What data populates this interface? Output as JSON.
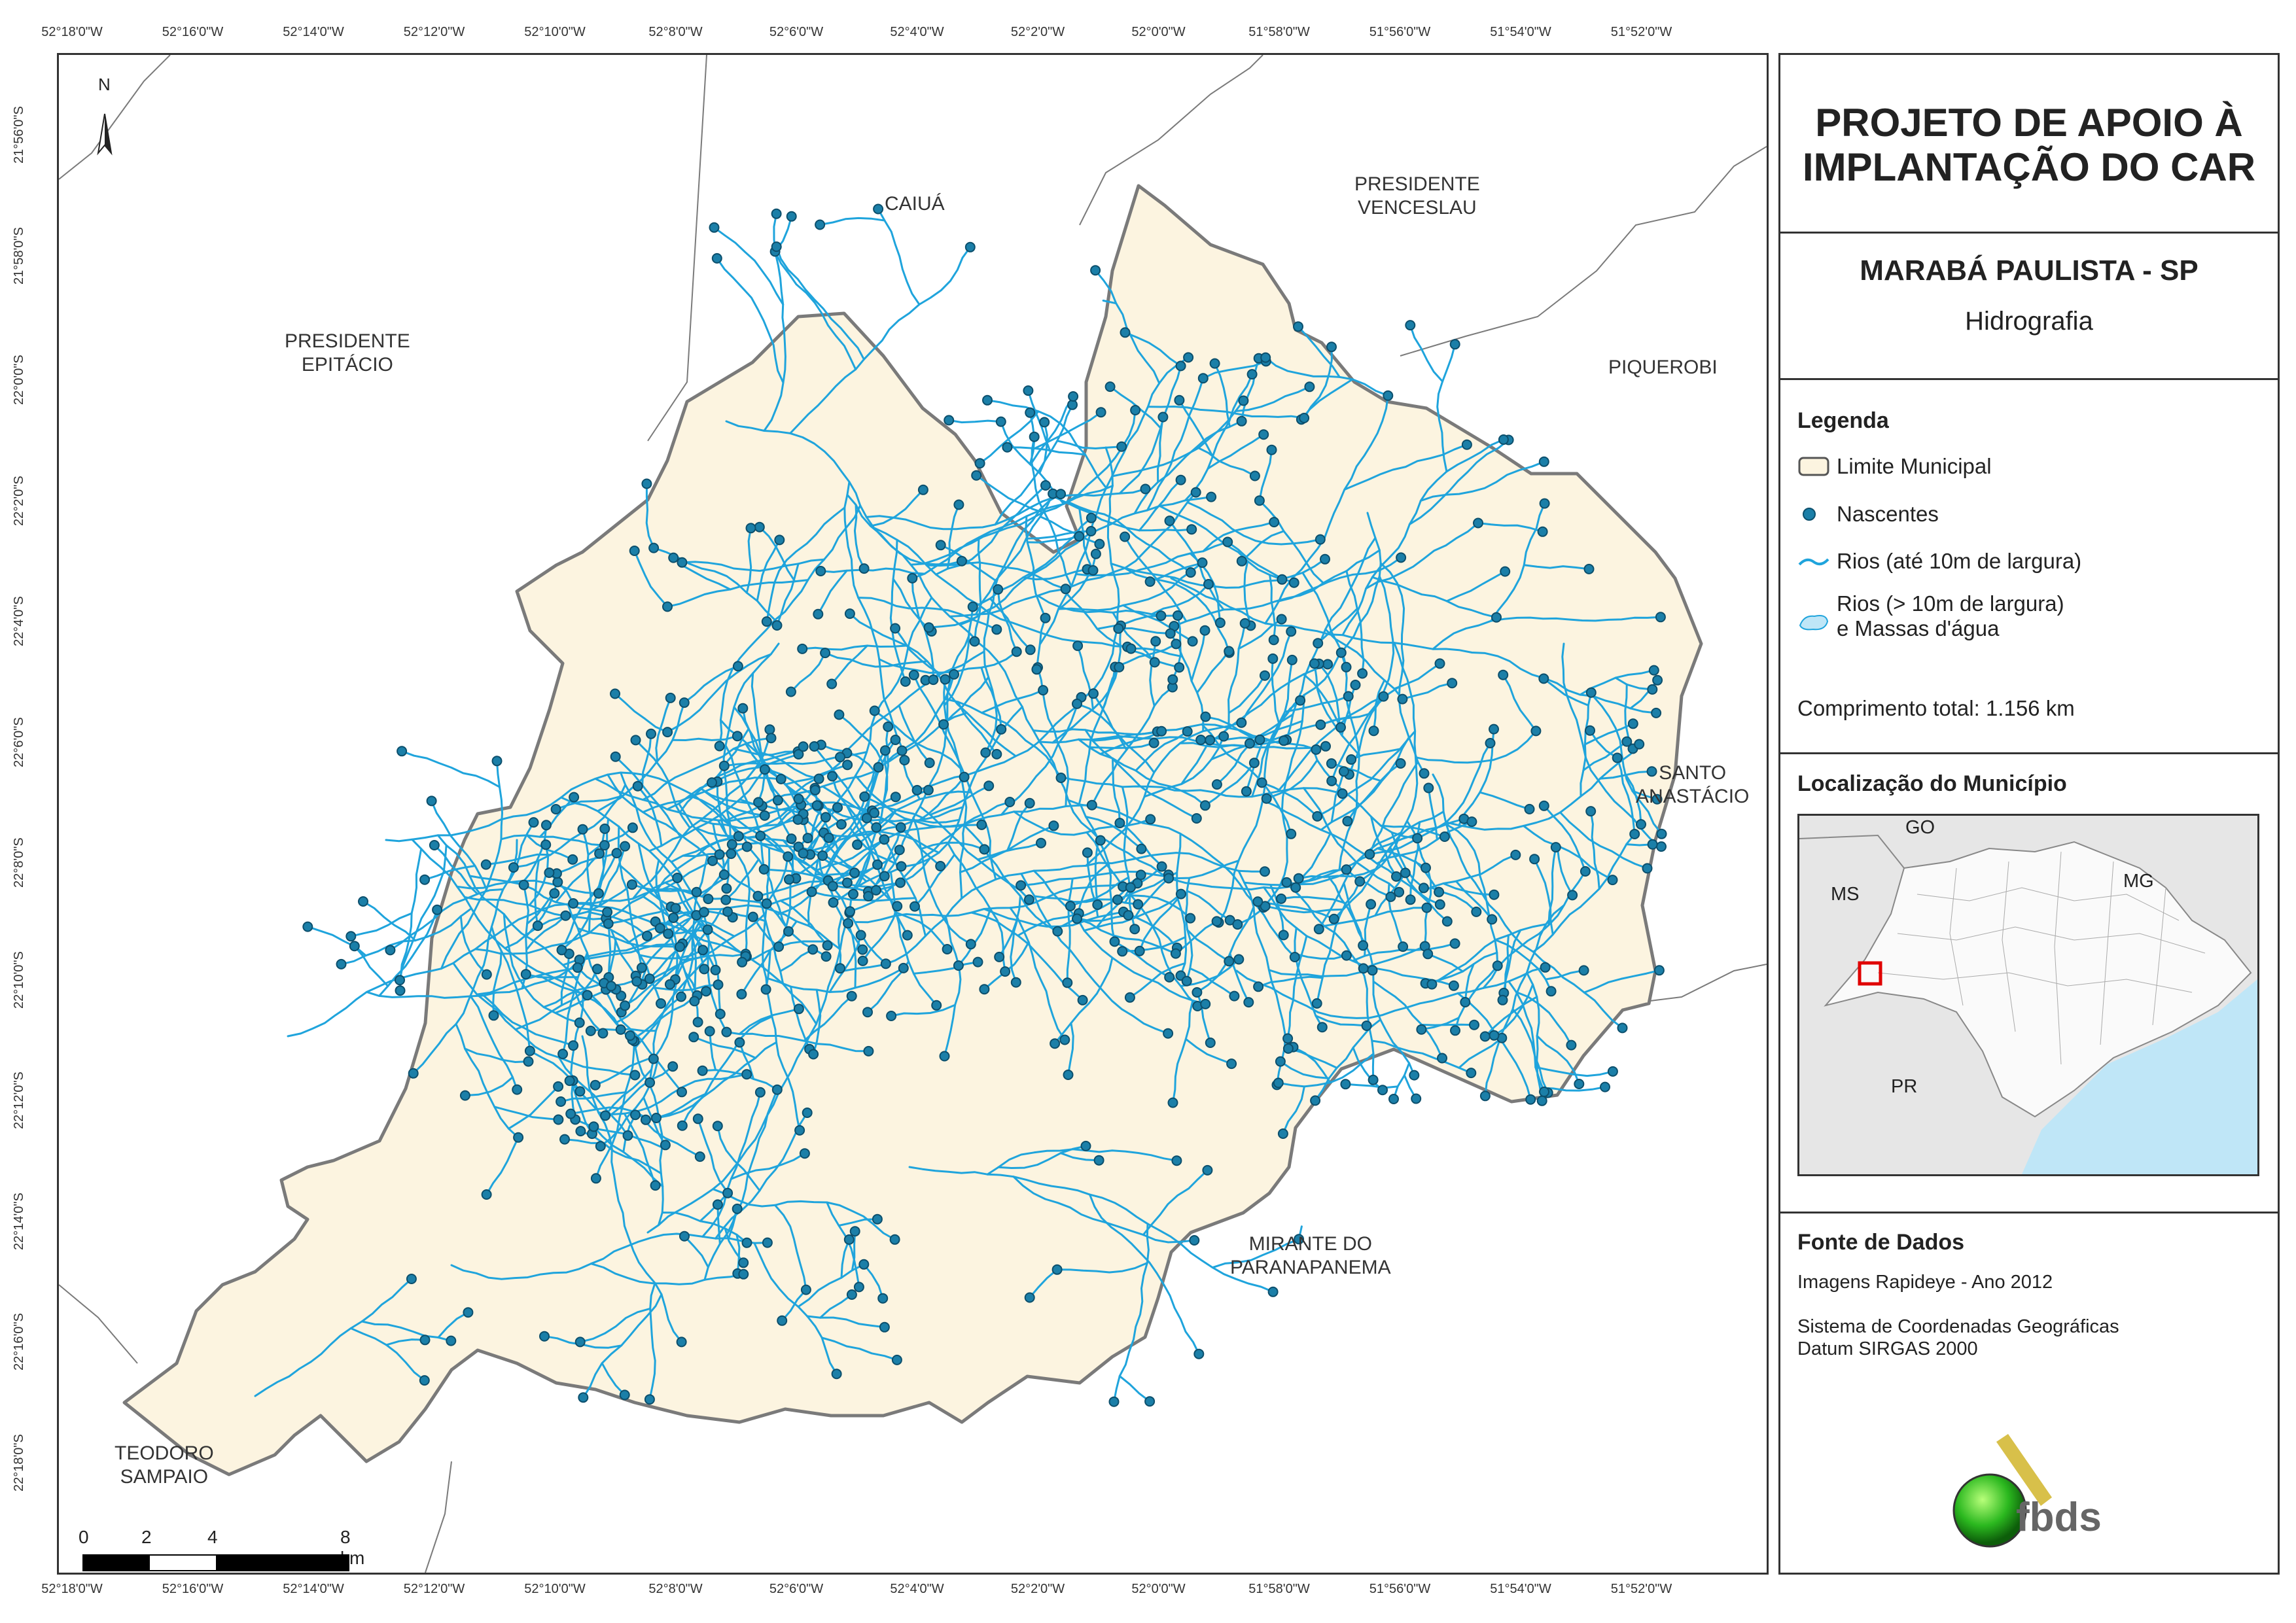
{
  "coordinates": {
    "longitudes": [
      "52°18'0\"W",
      "52°16'0\"W",
      "52°14'0\"W",
      "52°12'0\"W",
      "52°10'0\"W",
      "52°8'0\"W",
      "52°6'0\"W",
      "52°4'0\"W",
      "52°2'0\"W",
      "52°0'0\"W",
      "51°58'0\"W",
      "51°56'0\"W",
      "51°54'0\"W",
      "51°52'0\"W"
    ],
    "latitudes": [
      "21°56'0\"S",
      "21°58'0\"S",
      "22°0'0\"S",
      "22°2'0\"S",
      "22°4'0\"S",
      "22°6'0\"S",
      "22°8'0\"S",
      "22°10'0\"S",
      "22°12'0\"S",
      "22°14'0\"S",
      "22°16'0\"S",
      "22°18'0\"S"
    ]
  },
  "map": {
    "north_label": "N",
    "neighbors": {
      "caiua": "CAIUÁ",
      "presidente_venceslau_1": "PRESIDENTE",
      "presidente_venceslau_2": "VENCESLAU",
      "presidente_epitacio_1": "PRESIDENTE",
      "presidente_epitacio_2": "EPITÁCIO",
      "piquerobi": "PIQUEROBI",
      "santo_anastacio_1": "SANTO",
      "santo_anastacio_2": "ANASTÁCIO",
      "mirante_1": "MIRANTE DO",
      "mirante_2": "PARANAPANEMA",
      "teodoro_1": "TEODORO",
      "teodoro_2": "SAMPAIO"
    },
    "scale": {
      "labels": [
        "0",
        "2",
        "4",
        "8 km"
      ]
    },
    "colors": {
      "municipality_fill": "#fcf4e0",
      "border": "#7a7a7a",
      "rivers": "#1fa4dc",
      "springs": "#1b7fa8",
      "water_bodies": "#bfe6f7"
    }
  },
  "panel": {
    "title_line1": "PROJETO DE APOIO À",
    "title_line2": "IMPLANTAÇÃO DO CAR",
    "municipality": "MARABÁ PAULISTA - SP",
    "theme": "Hidrografia",
    "legend": {
      "heading": "Legenda",
      "items": [
        {
          "label": "Limite Municipal",
          "icon": "boundary-swatch"
        },
        {
          "label": "Nascentes",
          "icon": "spring-dot"
        },
        {
          "label": "Rios (até 10m de largura)",
          "icon": "river-line"
        },
        {
          "label": "Rios (> 10m de largura)",
          "label2": "e Massas d'água",
          "icon": "water-body-swatch"
        }
      ],
      "total_length": "Comprimento total:  1.156 km"
    },
    "location": {
      "heading": "Localização do Município",
      "labels": {
        "go": "GO",
        "ms": "MS",
        "mg": "MG",
        "pr": "PR"
      }
    },
    "sources": {
      "heading": "Fonte de Dados",
      "lines": [
        "Imagens Rapideye - Ano 2012",
        "Sistema de Coordenadas Geográficas",
        "Datum SIRGAS 2000"
      ]
    },
    "logo_text": "fbds"
  }
}
